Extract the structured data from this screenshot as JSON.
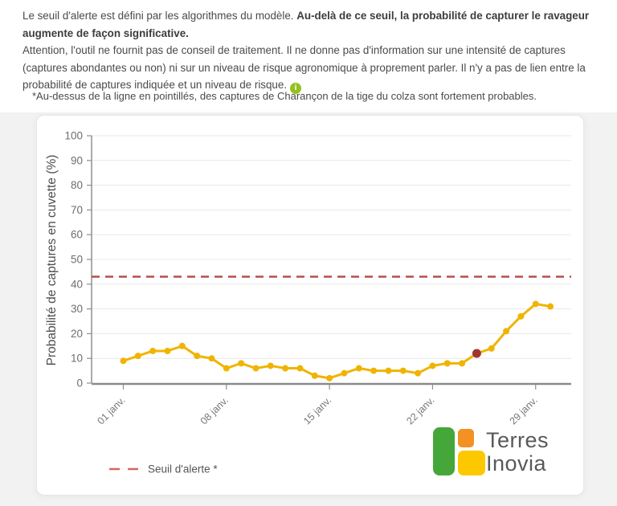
{
  "intro": {
    "lead_normal": "Le seuil d'alerte est défini par les algorithmes du modèle. ",
    "lead_bold": "Au-delà de ce seuil, la probabilité de capturer le ravageur augmente de façon significative.",
    "caution": "Attention, l'outil ne fournit pas de conseil de traitement. Il ne donne pas d'information sur une intensité de captures (captures abondantes ou non) ni sur un niveau de risque agronomique à proprement parler. Il n'y a pas de lien entre la probabilité de captures indiquée et un niveau de risque.",
    "info_icon": {
      "glyph": "i",
      "color": "#94c11f"
    },
    "note": "*Au-dessus de la ligne en pointillés, des captures de Charançon de la tige du colza sont fortement probables."
  },
  "chart_data": {
    "type": "line",
    "title": "",
    "xlabel": "",
    "ylabel": "Probabilité de captures en cuvette (%)",
    "ylim": [
      0,
      100
    ],
    "y_ticks": [
      0,
      10,
      20,
      30,
      40,
      50,
      60,
      70,
      80,
      90,
      100
    ],
    "grid": true,
    "x_days": [
      1,
      2,
      3,
      4,
      5,
      6,
      7,
      8,
      9,
      10,
      11,
      12,
      13,
      14,
      15,
      16,
      17,
      18,
      19,
      20,
      21,
      22,
      23,
      24,
      25,
      26,
      27,
      28,
      29,
      30
    ],
    "x_tick_days": [
      1,
      8,
      15,
      22,
      29
    ],
    "x_tick_labels": [
      "01 janv.",
      "08 janv.",
      "15 janv.",
      "22 janv.",
      "29 janv."
    ],
    "series": [
      {
        "name": "Probabilité de captures en cuvette",
        "color": "#f0b400",
        "values": [
          9,
          11,
          13,
          13,
          15,
          11,
          10,
          6,
          8,
          6,
          7,
          6,
          6,
          3,
          2,
          4,
          6,
          5,
          5,
          5,
          4,
          7,
          8,
          8,
          12,
          14,
          21,
          27,
          32,
          31
        ]
      }
    ],
    "highlight_point": {
      "day": 25,
      "value": 12,
      "color": "#a13530"
    },
    "threshold": {
      "value": 43,
      "color": "#b2514b",
      "style": "dashed"
    },
    "legend": {
      "position": "bottom-left",
      "items": [
        {
          "label": "Seuil d'alerte *",
          "color": "#d2685f",
          "style": "dashed"
        }
      ]
    },
    "axis_color": "#8f8f8f",
    "gridline_color": "#e8e8e8",
    "tick_label_color": "#6e6e6e"
  },
  "logo": {
    "line1": "Terres",
    "line2": "Inovia",
    "green": "#45a73a",
    "orange": "#f39122",
    "yellow": "#fdc800",
    "text_color": "#58595b"
  }
}
